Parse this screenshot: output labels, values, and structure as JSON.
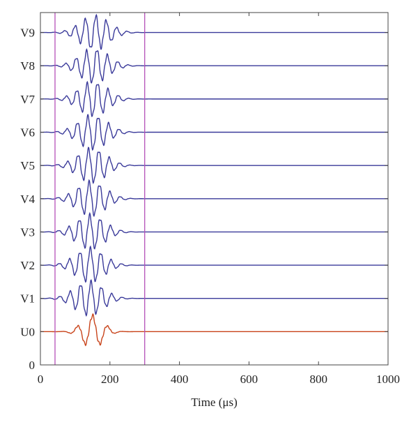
{
  "chart_data": {
    "type": "line",
    "title": "",
    "xlabel": "Time (μs)",
    "ylabel": "",
    "xlim": [
      0,
      1000
    ],
    "ylim": [
      0,
      10.6
    ],
    "x_ticks": [
      0,
      200,
      400,
      600,
      800,
      1000
    ],
    "x_tick_labels": [
      "0",
      "200",
      "400",
      "600",
      "800",
      "1000"
    ],
    "y_tick_labels": [
      "0",
      "U0",
      "V1",
      "V2",
      "V3",
      "V4",
      "V5",
      "V6",
      "V7",
      "V8",
      "V9"
    ],
    "grid": false,
    "vertical_markers": [
      {
        "x": 42,
        "color": "#b550b8"
      },
      {
        "x": 300,
        "color": "#b550b8"
      }
    ],
    "series": [
      {
        "name": "U0",
        "offset": 1,
        "color": "#c8431a",
        "center_us": 150,
        "width_us": 42,
        "period_us": 44,
        "amplitude": 0.5,
        "phase": 1.57
      },
      {
        "name": "V1",
        "offset": 2,
        "color": "#3a3a9a",
        "center_us": 140,
        "width_us": 58,
        "period_us": 30,
        "amplitude": 0.52,
        "phase": 0.4
      },
      {
        "name": "V2",
        "offset": 3,
        "color": "#3a3a9a",
        "center_us": 142,
        "width_us": 58,
        "period_us": 30,
        "amplitude": 0.52,
        "phase": 1.2
      },
      {
        "name": "V3",
        "offset": 4,
        "color": "#3a3a9a",
        "center_us": 144,
        "width_us": 58,
        "period_us": 30,
        "amplitude": 0.52,
        "phase": 2.0
      },
      {
        "name": "V4",
        "offset": 5,
        "color": "#3a3a9a",
        "center_us": 146,
        "width_us": 58,
        "period_us": 30,
        "amplitude": 0.52,
        "phase": 2.8
      },
      {
        "name": "V5",
        "offset": 6,
        "color": "#3a3a9a",
        "center_us": 148,
        "width_us": 58,
        "period_us": 30,
        "amplitude": 0.52,
        "phase": 3.6
      },
      {
        "name": "V6",
        "offset": 7,
        "color": "#3a3a9a",
        "center_us": 150,
        "width_us": 58,
        "period_us": 30,
        "amplitude": 0.52,
        "phase": 4.4
      },
      {
        "name": "V7",
        "offset": 8,
        "color": "#3a3a9a",
        "center_us": 152,
        "width_us": 58,
        "period_us": 30,
        "amplitude": 0.52,
        "phase": 5.2
      },
      {
        "name": "V8",
        "offset": 9,
        "color": "#3a3a9a",
        "center_us": 154,
        "width_us": 58,
        "period_us": 30,
        "amplitude": 0.52,
        "phase": 6.0
      },
      {
        "name": "V9",
        "offset": 10,
        "color": "#3a3a9a",
        "center_us": 156,
        "width_us": 58,
        "period_us": 30,
        "amplitude": 0.52,
        "phase": 0.8
      }
    ]
  }
}
